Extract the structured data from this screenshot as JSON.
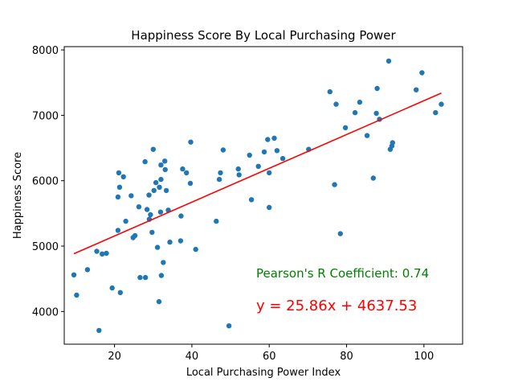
{
  "chart_data": {
    "type": "scatter",
    "title": "Happiness Score By Local Purchasing Power",
    "xlabel": "Local Purchasing Power Index",
    "ylabel": "Happiness Score",
    "xlim": [
      7,
      110
    ],
    "ylim": [
      3500,
      8050
    ],
    "xticks": [
      20,
      40,
      60,
      80,
      100
    ],
    "yticks": [
      4000,
      5000,
      6000,
      7000,
      8000
    ],
    "grid": false,
    "marker_color": "#1f77b4",
    "line_color": "#ff0000",
    "regression": {
      "slope": 25.86,
      "intercept": 4637.53
    },
    "annotations": [
      {
        "text": "Pearson's R Coefficient: 0.74",
        "color": "#008000"
      },
      {
        "text": "y = 25.86x + 4637.53",
        "color": "#ff0000"
      }
    ],
    "points": [
      [
        9.5,
        4560
      ],
      [
        10.2,
        4250
      ],
      [
        13.0,
        4640
      ],
      [
        15.4,
        4920
      ],
      [
        16.0,
        3710
      ],
      [
        16.8,
        4880
      ],
      [
        17.9,
        4890
      ],
      [
        19.4,
        4360
      ],
      [
        20.9,
        5240
      ],
      [
        20.9,
        5750
      ],
      [
        21.1,
        6120
      ],
      [
        21.3,
        5900
      ],
      [
        21.5,
        4290
      ],
      [
        22.3,
        6060
      ],
      [
        22.9,
        5380
      ],
      [
        24.3,
        5770
      ],
      [
        24.8,
        5130
      ],
      [
        25.3,
        5160
      ],
      [
        26.3,
        5600
      ],
      [
        26.6,
        4520
      ],
      [
        27.9,
        6290
      ],
      [
        28.0,
        4520
      ],
      [
        28.4,
        5560
      ],
      [
        28.9,
        5780
      ],
      [
        29.0,
        5410
      ],
      [
        29.3,
        5480
      ],
      [
        29.7,
        5210
      ],
      [
        30.0,
        6480
      ],
      [
        30.2,
        5850
      ],
      [
        30.7,
        5970
      ],
      [
        31.1,
        4980
      ],
      [
        31.5,
        4150
      ],
      [
        31.6,
        5900
      ],
      [
        31.9,
        5520
      ],
      [
        32.0,
        6020
      ],
      [
        32.0,
        6240
      ],
      [
        32.1,
        4550
      ],
      [
        32.6,
        4750
      ],
      [
        33.0,
        6300
      ],
      [
        33.1,
        6170
      ],
      [
        33.4,
        5850
      ],
      [
        33.9,
        5550
      ],
      [
        34.3,
        5060
      ],
      [
        37.1,
        5080
      ],
      [
        37.2,
        5460
      ],
      [
        37.6,
        6180
      ],
      [
        38.6,
        6120
      ],
      [
        39.6,
        5960
      ],
      [
        39.7,
        6590
      ],
      [
        41.0,
        4950
      ],
      [
        46.3,
        5380
      ],
      [
        47.1,
        6020
      ],
      [
        47.4,
        6120
      ],
      [
        48.1,
        6470
      ],
      [
        49.6,
        3780
      ],
      [
        52.0,
        6180
      ],
      [
        52.2,
        6090
      ],
      [
        54.9,
        6390
      ],
      [
        55.4,
        5710
      ],
      [
        57.2,
        6220
      ],
      [
        58.7,
        6440
      ],
      [
        59.6,
        6630
      ],
      [
        60.0,
        6120
      ],
      [
        60.0,
        5590
      ],
      [
        61.3,
        6650
      ],
      [
        62.0,
        6460
      ],
      [
        63.5,
        6340
      ],
      [
        70.2,
        6480
      ],
      [
        75.7,
        7360
      ],
      [
        76.9,
        5940
      ],
      [
        77.3,
        7170
      ],
      [
        78.4,
        5190
      ],
      [
        79.7,
        6810
      ],
      [
        82.2,
        7040
      ],
      [
        83.4,
        7200
      ],
      [
        85.3,
        6690
      ],
      [
        86.9,
        6040
      ],
      [
        87.7,
        7030
      ],
      [
        87.9,
        7410
      ],
      [
        88.5,
        6940
      ],
      [
        90.9,
        7830
      ],
      [
        91.3,
        6480
      ],
      [
        91.7,
        6530
      ],
      [
        91.9,
        6580
      ],
      [
        98.0,
        7390
      ],
      [
        99.5,
        7650
      ],
      [
        103.0,
        7040
      ],
      [
        104.5,
        7170
      ]
    ]
  }
}
